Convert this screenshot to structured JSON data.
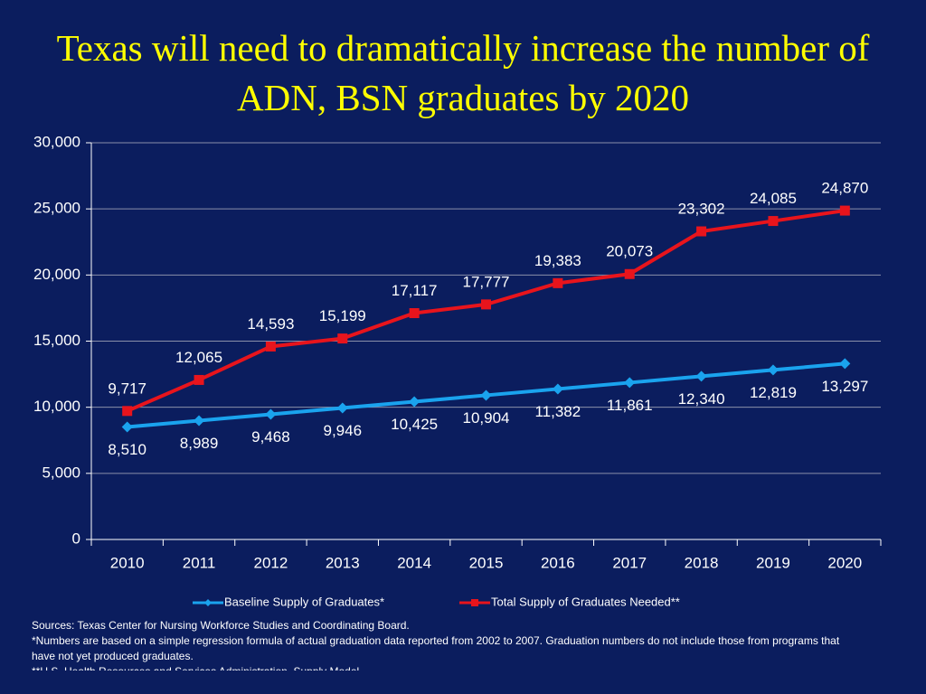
{
  "chart_data": {
    "type": "line",
    "title": "Texas will need to dramatically increase the number of ADN, BSN graduates by 2020",
    "categories": [
      "2010",
      "2011",
      "2012",
      "2013",
      "2014",
      "2015",
      "2016",
      "2017",
      "2018",
      "2019",
      "2020"
    ],
    "series": [
      {
        "name": "Baseline Supply of Graduates*",
        "color": "#1aa3ee",
        "marker": "diamond",
        "values": [
          8510,
          8989,
          9468,
          9946,
          10425,
          10904,
          11382,
          11861,
          12340,
          12819,
          13297
        ],
        "value_labels": [
          "8,510",
          "8,989",
          "9,468",
          "9,946",
          "10,425",
          "10,904",
          "11,382",
          "11,861",
          "12,340",
          "12,819",
          "13,297"
        ]
      },
      {
        "name": "Total Supply of Graduates Needed**",
        "color": "#e8141c",
        "marker": "square",
        "values": [
          9717,
          12065,
          14593,
          15199,
          17117,
          17777,
          19383,
          20073,
          23302,
          24085,
          24870
        ],
        "value_labels": [
          "9,717",
          "12,065",
          "14,593",
          "15,199",
          "17,117",
          "17,777",
          "19,383",
          "20,073",
          "23,302",
          "24,085",
          "24,870"
        ]
      }
    ],
    "ylim": [
      0,
      30000
    ],
    "yticks": [
      0,
      {
        "value": 5000,
        "label": "5,000"
      },
      {
        "value": 10000,
        "label": "10,000"
      },
      {
        "value": 15000,
        "label": "15,000"
      },
      {
        "value": 20000,
        "label": "20,000"
      },
      {
        "value": 25000,
        "label": "25,000"
      },
      {
        "value": 30000,
        "label": "30,000"
      }
    ],
    "grid": true,
    "legend": "bottom",
    "notes": [
      "Sources: Texas Center for Nursing Workforce Studies and Coordinating Board.",
      "*Numbers are based on a simple regression formula of actual graduation data reported from 2002 to 2007. Graduation numbers do not include those from programs that have not yet produced graduates.",
      "**U.S. Health Resources and Services Administration, Supply Model"
    ]
  }
}
